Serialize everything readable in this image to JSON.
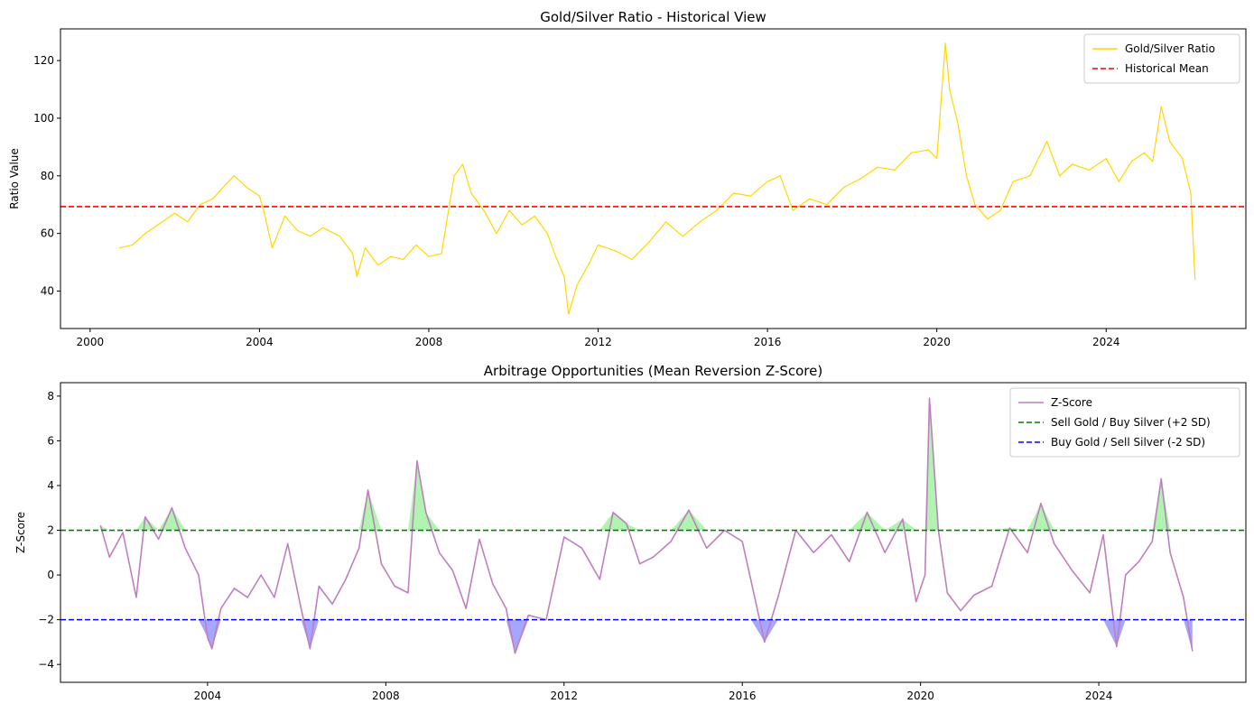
{
  "chart_data": [
    {
      "type": "line",
      "title": "Gold/Silver Ratio - Historical View",
      "xlabel": "",
      "ylabel": "Ratio Value",
      "xlim": [
        1999.3,
        2027.3
      ],
      "ylim": [
        27,
        131
      ],
      "x_ticks": [
        2000,
        2004,
        2008,
        2012,
        2016,
        2020,
        2024
      ],
      "x_tick_labels": [
        "2000",
        "2004",
        "2008",
        "2012",
        "2016",
        "2020",
        "2024"
      ],
      "y_ticks": [
        40,
        60,
        80,
        100,
        120
      ],
      "y_tick_labels": [
        "40",
        "60",
        "80",
        "100",
        "120"
      ],
      "grid": false,
      "legend_position": "top-right",
      "series": [
        {
          "name": "Gold/Silver Ratio",
          "color": "#ffd700",
          "style": "solid",
          "x": [
            2000.7,
            2001.0,
            2001.3,
            2001.6,
            2002.0,
            2002.3,
            2002.6,
            2002.9,
            2003.2,
            2003.4,
            2003.7,
            2004.0,
            2004.1,
            2004.3,
            2004.6,
            2004.9,
            2005.2,
            2005.5,
            2005.9,
            2006.2,
            2006.3,
            2006.5,
            2006.8,
            2007.1,
            2007.4,
            2007.7,
            2008.0,
            2008.3,
            2008.6,
            2008.8,
            2009.0,
            2009.3,
            2009.6,
            2009.9,
            2010.2,
            2010.5,
            2010.8,
            2011.0,
            2011.2,
            2011.3,
            2011.5,
            2011.8,
            2012.0,
            2012.4,
            2012.8,
            2013.2,
            2013.6,
            2014.0,
            2014.4,
            2014.8,
            2015.2,
            2015.6,
            2016.0,
            2016.3,
            2016.6,
            2017.0,
            2017.4,
            2017.8,
            2018.2,
            2018.6,
            2019.0,
            2019.4,
            2019.8,
            2020.0,
            2020.2,
            2020.3,
            2020.5,
            2020.7,
            2020.9,
            2021.2,
            2021.5,
            2021.8,
            2022.2,
            2022.6,
            2022.9,
            2023.2,
            2023.6,
            2024.0,
            2024.3,
            2024.6,
            2024.9,
            2025.1,
            2025.3,
            2025.5,
            2025.8,
            2026.0,
            2026.1
          ],
          "y": [
            55,
            56,
            60,
            63,
            67,
            64,
            70,
            72,
            77,
            80,
            76,
            73,
            68,
            55,
            66,
            61,
            59,
            62,
            59,
            53,
            45,
            55,
            49,
            52,
            51,
            56,
            52,
            53,
            80,
            84,
            74,
            68,
            60,
            68,
            63,
            66,
            60,
            52,
            45,
            32,
            42,
            50,
            56,
            54,
            51,
            57,
            64,
            59,
            64,
            68,
            74,
            73,
            78,
            80,
            68,
            72,
            70,
            76,
            79,
            83,
            82,
            88,
            89,
            86,
            126,
            110,
            98,
            80,
            70,
            65,
            68,
            78,
            80,
            92,
            80,
            84,
            82,
            86,
            78,
            85,
            88,
            85,
            104,
            92,
            86,
            74,
            44
          ]
        },
        {
          "name": "Historical Mean",
          "color": "#ff0000",
          "style": "dashed",
          "y_constant": 69.3
        }
      ]
    },
    {
      "type": "line",
      "title": "Arbitrage Opportunities (Mean Reversion Z-Score)",
      "xlabel": "",
      "ylabel": "Z-Score",
      "xlim": [
        2000.7,
        2027.3
      ],
      "ylim": [
        -4.8,
        8.6
      ],
      "x_ticks": [
        2004,
        2008,
        2012,
        2016,
        2020,
        2024
      ],
      "x_tick_labels": [
        "2004",
        "2008",
        "2012",
        "2016",
        "2020",
        "2024"
      ],
      "y_ticks": [
        -4,
        -2,
        0,
        2,
        4,
        6,
        8
      ],
      "y_tick_labels": [
        "−4",
        "−2",
        "0",
        "2",
        "4",
        "6",
        "8"
      ],
      "grid": false,
      "legend_position": "top-right",
      "series": [
        {
          "name": "Z-Score",
          "color": "#bf7fbf",
          "style": "solid",
          "x": [
            2001.6,
            2001.8,
            2002.1,
            2002.4,
            2002.6,
            2002.9,
            2003.2,
            2003.5,
            2003.8,
            2004.0,
            2004.1,
            2004.3,
            2004.6,
            2004.9,
            2005.2,
            2005.5,
            2005.8,
            2006.1,
            2006.3,
            2006.5,
            2006.8,
            2007.1,
            2007.4,
            2007.6,
            2007.9,
            2008.2,
            2008.5,
            2008.7,
            2008.9,
            2009.2,
            2009.5,
            2009.8,
            2010.1,
            2010.4,
            2010.7,
            2010.9,
            2011.2,
            2011.6,
            2012.0,
            2012.4,
            2012.8,
            2013.1,
            2013.4,
            2013.7,
            2014.0,
            2014.4,
            2014.8,
            2015.2,
            2015.6,
            2016.0,
            2016.2,
            2016.5,
            2016.8,
            2017.2,
            2017.6,
            2018.0,
            2018.4,
            2018.8,
            2019.2,
            2019.6,
            2019.9,
            2020.1,
            2020.2,
            2020.4,
            2020.6,
            2020.9,
            2021.2,
            2021.6,
            2022.0,
            2022.4,
            2022.7,
            2023.0,
            2023.4,
            2023.8,
            2024.1,
            2024.4,
            2024.6,
            2024.9,
            2025.2,
            2025.4,
            2025.6,
            2025.9,
            2026.1
          ],
          "y": [
            2.2,
            0.8,
            1.9,
            -1.0,
            2.6,
            1.6,
            3.0,
            1.2,
            0.0,
            -2.8,
            -3.3,
            -1.5,
            -0.6,
            -1.0,
            0.0,
            -1.0,
            1.4,
            -1.5,
            -3.3,
            -0.5,
            -1.3,
            -0.2,
            1.2,
            3.8,
            0.5,
            -0.5,
            -0.8,
            5.1,
            2.8,
            1.0,
            0.2,
            -1.5,
            1.6,
            -0.4,
            -1.5,
            -3.5,
            -1.8,
            -2.0,
            1.7,
            1.2,
            -0.2,
            2.8,
            2.3,
            0.5,
            0.8,
            1.5,
            2.9,
            1.2,
            2.0,
            1.5,
            -0.3,
            -3.0,
            -1.0,
            2.0,
            1.0,
            1.8,
            0.6,
            2.8,
            1.0,
            2.5,
            -1.2,
            0.0,
            7.9,
            2.0,
            -0.8,
            -1.6,
            -0.9,
            -0.5,
            2.1,
            1.0,
            3.2,
            1.4,
            0.2,
            -0.8,
            1.8,
            -3.2,
            0.0,
            0.6,
            1.5,
            4.3,
            1.0,
            -1.0,
            -3.4
          ]
        },
        {
          "name": "Sell Gold / Buy Silver (+2 SD)",
          "color": "#008000",
          "style": "dashed",
          "y_constant": 2
        },
        {
          "name": "Buy Gold / Sell Silver (-2 SD)",
          "color": "#0000ff",
          "style": "dashed",
          "y_constant": -2
        }
      ],
      "fill_colors": {
        "above": "#90ee90",
        "below": "#8080ff"
      }
    }
  ]
}
